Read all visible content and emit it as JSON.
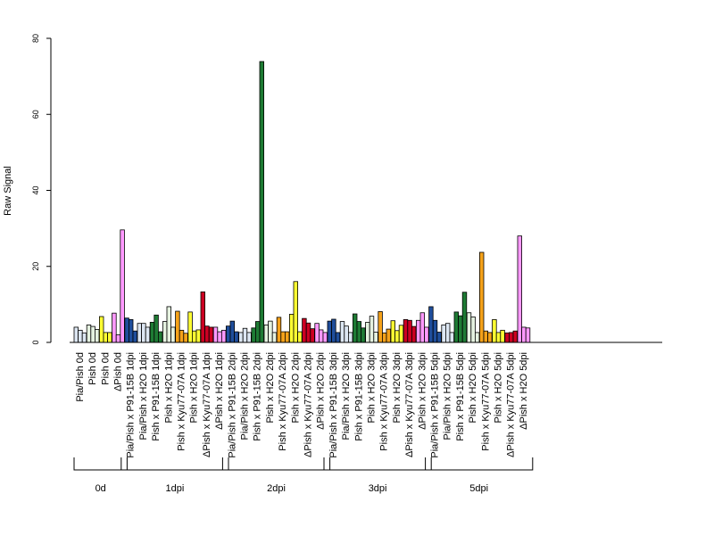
{
  "chart_data": {
    "type": "bar",
    "ylabel": "Raw Signal",
    "ylim": [
      0,
      80
    ],
    "yticks": [
      0,
      20,
      40,
      60,
      80
    ],
    "grid": false,
    "categories": [
      {
        "label": "Pia/Pish 0d",
        "color": "#dce6f2",
        "values": [
          4.0,
          3.2,
          2.5
        ]
      },
      {
        "label": "Pish 0d",
        "color": "#e5f2e0",
        "values": [
          4.6,
          4.2,
          3.4
        ]
      },
      {
        "label": "Pish 0d",
        "color": "#ffff33",
        "values": [
          6.8,
          2.6,
          2.6
        ]
      },
      {
        "label": "ΔPish 0d",
        "color": "#ff99ff",
        "values": [
          7.7,
          2.0,
          29.6
        ]
      },
      {
        "label": "Pia/Pish x P91-15B 1dpi",
        "color": "#1f4e9c",
        "values": [
          6.4,
          6.0,
          3.0
        ]
      },
      {
        "label": "Pia/Pish x H2O 1dpi",
        "color": "#dce6f2",
        "values": [
          5.0,
          5.0,
          4.0
        ]
      },
      {
        "label": "Pish x P91-15B 1dpi",
        "color": "#1e7b34",
        "values": [
          5.3,
          7.2,
          2.8
        ]
      },
      {
        "label": "Pish x H2O 1dpi",
        "color": "#e5f2e0",
        "values": [
          5.5,
          9.4,
          4.0
        ]
      },
      {
        "label": "Pish x Kyu77-07A 1dpi",
        "color": "#f5a21a",
        "values": [
          8.2,
          3.2,
          2.4
        ]
      },
      {
        "label": "Pish x H2O 1dpi",
        "color": "#ffff33",
        "values": [
          8.0,
          3.0,
          3.3
        ]
      },
      {
        "label": "ΔPish x Kyu77-07A 1dpi",
        "color": "#cc0022",
        "values": [
          13.3,
          4.3,
          4.0
        ]
      },
      {
        "label": "ΔPish x H2O 1dpi",
        "color": "#ff99ff",
        "values": [
          4.0,
          2.8,
          3.2
        ]
      },
      {
        "label": "Pia/Pish x P91-15B 2dpi",
        "color": "#1f4e9c",
        "values": [
          4.3,
          5.6,
          2.8
        ]
      },
      {
        "label": "Pia/Pish x H2O 2dpi",
        "color": "#dce6f2",
        "values": [
          2.6,
          3.7,
          2.6
        ]
      },
      {
        "label": "Pish x P91-15B 2dpi",
        "color": "#1e7b34",
        "values": [
          3.8,
          5.5,
          73.9
        ]
      },
      {
        "label": "Pish x H2O 2dpi",
        "color": "#e5f2e0",
        "values": [
          4.6,
          5.6,
          2.6
        ]
      },
      {
        "label": "Pish x Kyu77-07A 2dpi",
        "color": "#f5a21a",
        "values": [
          6.6,
          2.8,
          2.8
        ]
      },
      {
        "label": "Pish x H2O 2dpi",
        "color": "#ffff33",
        "values": [
          7.4,
          16.0,
          2.8
        ]
      },
      {
        "label": "ΔPish x Kyu77-07A 2dpi",
        "color": "#cc0022",
        "values": [
          6.3,
          5.1,
          3.6
        ]
      },
      {
        "label": "ΔPish x H2O 2dpi",
        "color": "#ff99ff",
        "values": [
          5.0,
          3.3,
          2.6
        ]
      },
      {
        "label": "Pia/Pish x P91-15B 3dpi",
        "color": "#1f4e9c",
        "values": [
          5.6,
          6.1,
          2.6
        ]
      },
      {
        "label": "Pia/Pish x H2O 3dpi",
        "color": "#dce6f2",
        "values": [
          5.5,
          4.3,
          2.6
        ]
      },
      {
        "label": "Pish x P91-15B 3dpi",
        "color": "#1e7b34",
        "values": [
          7.5,
          5.5,
          3.8
        ]
      },
      {
        "label": "Pish x H2O 3dpi",
        "color": "#e5f2e0",
        "values": [
          5.3,
          6.9,
          2.7
        ]
      },
      {
        "label": "Pish x Kyu77-07A 3dpi",
        "color": "#f5a21a",
        "values": [
          8.1,
          2.5,
          3.5
        ]
      },
      {
        "label": "Pish x H2O 3dpi",
        "color": "#ffff33",
        "values": [
          5.7,
          3.1,
          4.5
        ]
      },
      {
        "label": "ΔPish x Kyu77-07A 3dpi",
        "color": "#cc0022",
        "values": [
          6.0,
          5.8,
          4.2
        ]
      },
      {
        "label": "ΔPish x H2O 3dpi",
        "color": "#ff99ff",
        "values": [
          5.8,
          7.8,
          4.0
        ]
      },
      {
        "label": "Pia/Pish x P91-15B 5dpi",
        "color": "#1f4e9c",
        "values": [
          9.4,
          5.8,
          2.7
        ]
      },
      {
        "label": "Pia/Pish x H2O 5dpi",
        "color": "#dce6f2",
        "values": [
          4.6,
          5.0,
          2.6
        ]
      },
      {
        "label": "Pish x P91-15B 5dpi",
        "color": "#1e7b34",
        "values": [
          8.0,
          7.0,
          13.2
        ]
      },
      {
        "label": "Pish x H2O 5dpi",
        "color": "#e5f2e0",
        "values": [
          7.8,
          6.7,
          2.6
        ]
      },
      {
        "label": "Pish x Kyu77-07A 5dpi",
        "color": "#f5a21a",
        "values": [
          23.7,
          3.0,
          2.6
        ]
      },
      {
        "label": "Pish x H2O 5dpi",
        "color": "#ffff33",
        "values": [
          6.0,
          2.6,
          3.2
        ]
      },
      {
        "label": "ΔPish x Kyu77-07A 5dpi",
        "color": "#cc0022",
        "values": [
          2.5,
          2.6,
          3.0
        ]
      },
      {
        "label": "ΔPish x H2O 5dpi",
        "color": "#ff99ff",
        "values": [
          28.0,
          4.0,
          3.8
        ]
      }
    ],
    "groups": [
      {
        "label": "0d",
        "start": 0,
        "end": 3
      },
      {
        "label": "1dpi",
        "start": 4,
        "end": 11
      },
      {
        "label": "2dpi",
        "start": 12,
        "end": 19
      },
      {
        "label": "3dpi",
        "start": 20,
        "end": 27
      },
      {
        "label": "5dpi",
        "start": 28,
        "end": 35
      }
    ]
  }
}
